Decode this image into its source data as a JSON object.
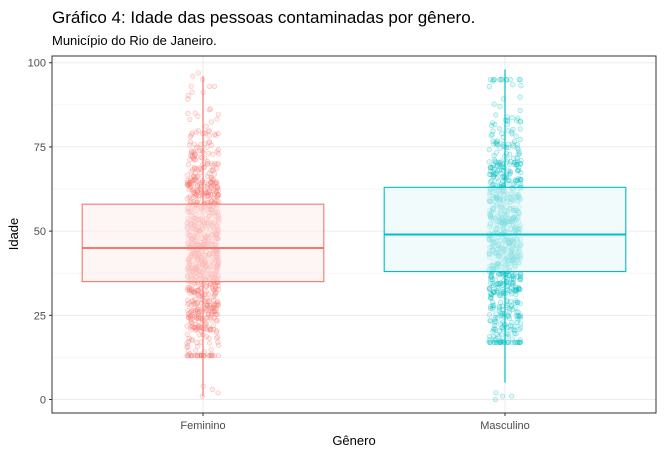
{
  "chart_data": {
    "type": "boxplot",
    "title": "Gráfico 4: Idade das pessoas contaminadas por gênero.",
    "subtitle": "Município do Rio de Janeiro.",
    "xlabel": "Gênero",
    "ylabel": "Idade",
    "ylim": [
      -4,
      102
    ],
    "yticks": [
      0,
      25,
      50,
      75,
      100
    ],
    "grid": true,
    "categories": [
      "Feminino",
      "Masculino"
    ],
    "series": [
      {
        "category": "Feminino",
        "color": "#F8766D",
        "fill": "#FDEDEC",
        "q1": 35,
        "median": 45,
        "q3": 58,
        "whisker_low": 1,
        "whisker_high": 96,
        "points": 900,
        "outliers": [
          1,
          2,
          3,
          4,
          96,
          97,
          95
        ]
      },
      {
        "category": "Masculino",
        "color": "#00BFC4",
        "fill": "#E5F7F8",
        "q1": 38,
        "median": 49,
        "q3": 63,
        "whisker_low": 5,
        "whisker_high": 98,
        "points": 800,
        "outliers": [
          0,
          1,
          1,
          2
        ]
      }
    ]
  }
}
